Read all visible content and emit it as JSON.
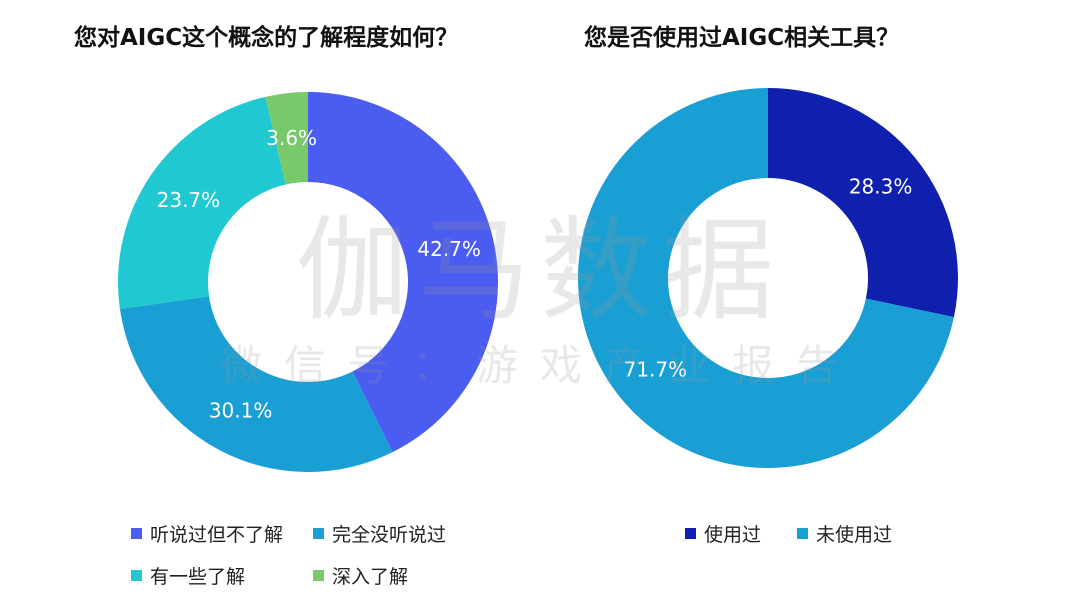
{
  "titles": {
    "left": "您对AIGC这个概念的了解程度如何？",
    "right": "您是否使用过AIGC相关工具？"
  },
  "watermark": {
    "main": "伽马数据",
    "sub": "微信号：游戏产业报告"
  },
  "chart_data": [
    {
      "type": "pie",
      "donut": true,
      "title": "您对AIGC这个概念的了解程度如何？",
      "categories": [
        "听说过但不了解",
        "完全没听说过",
        "有一些了解",
        "深入了解"
      ],
      "values": [
        42.7,
        30.1,
        23.7,
        3.6
      ],
      "labels": [
        "42.7%",
        "30.1%",
        "23.7%",
        "3.6%"
      ],
      "colors": [
        "#4b5cf0",
        "#1a9fd4",
        "#20c9d2",
        "#79c86a"
      ],
      "legend_position": "bottom"
    },
    {
      "type": "pie",
      "donut": true,
      "title": "您是否使用过AIGC相关工具？",
      "categories": [
        "使用过",
        "未使用过"
      ],
      "values": [
        28.3,
        71.7
      ],
      "labels": [
        "28.3%",
        "71.7%"
      ],
      "colors": [
        "#0f1fae",
        "#1a9fd4"
      ],
      "legend_position": "bottom"
    }
  ]
}
